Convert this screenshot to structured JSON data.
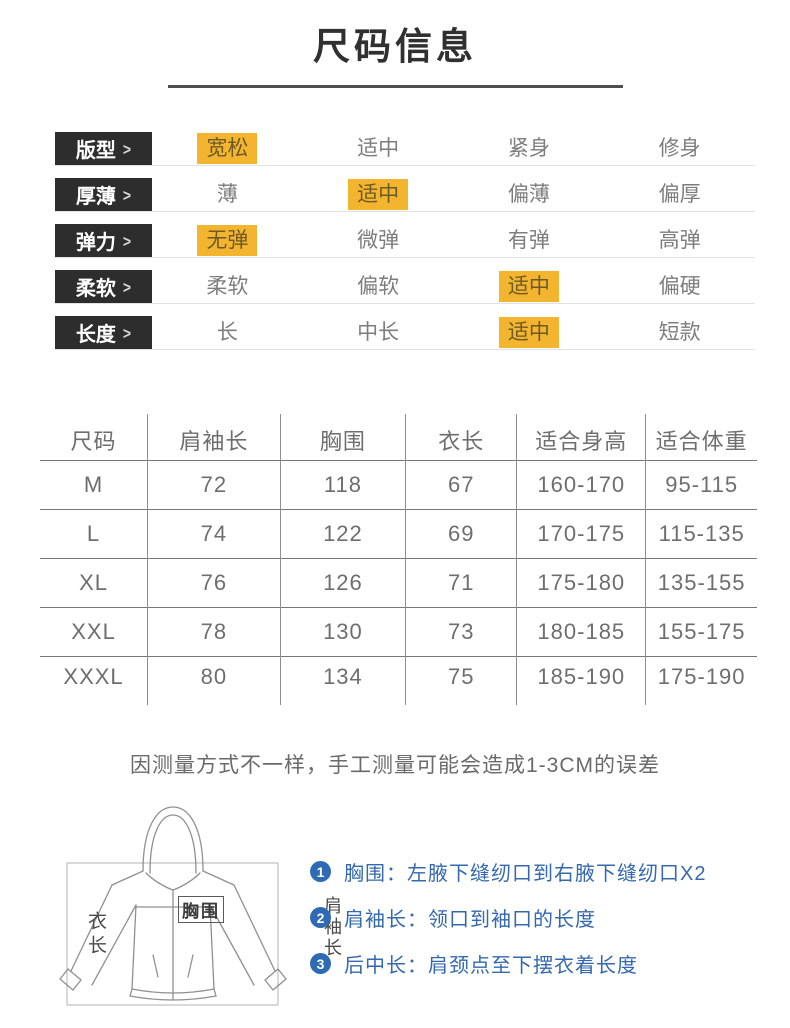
{
  "title": "尺码信息",
  "attributes": {
    "arrow": ">",
    "rows": [
      {
        "label": "版型",
        "options": [
          "宽松",
          "适中",
          "紧身",
          "修身"
        ],
        "selected": 0
      },
      {
        "label": "厚薄",
        "options": [
          "薄",
          "适中",
          "偏薄",
          "偏厚"
        ],
        "selected": 1
      },
      {
        "label": "弹力",
        "options": [
          "无弹",
          "微弹",
          "有弹",
          "高弹"
        ],
        "selected": 0
      },
      {
        "label": "柔软",
        "options": [
          "柔软",
          "偏软",
          "适中",
          "偏硬"
        ],
        "selected": 2
      },
      {
        "label": "长度",
        "options": [
          "长",
          "中长",
          "适中",
          "短款"
        ],
        "selected": 2
      }
    ]
  },
  "size_table": {
    "headers": [
      "尺码",
      "肩袖长",
      "胸围",
      "衣长",
      "适合身高",
      "适合体重"
    ],
    "rows": [
      [
        "M",
        "72",
        "118",
        "67",
        "160-170",
        "95-115"
      ],
      [
        "L",
        "74",
        "122",
        "69",
        "170-175",
        "115-135"
      ],
      [
        "XL",
        "76",
        "126",
        "71",
        "175-180",
        "135-155"
      ],
      [
        "XXL",
        "78",
        "130",
        "73",
        "180-185",
        "155-175"
      ],
      [
        "XXXL",
        "80",
        "134",
        "75",
        "185-190",
        "175-190"
      ]
    ]
  },
  "note": "因测量方式不一样，手工测量可能会造成1-3CM的误差",
  "diagram": {
    "labels": {
      "garment_length": "衣长",
      "shoulder_sleeve": "肩袖长",
      "chest": "胸围"
    }
  },
  "legend": {
    "items": [
      {
        "num": "1",
        "text": "胸围：左腋下缝纫口到右腋下缝纫口X2"
      },
      {
        "num": "2",
        "text": "肩袖长：领口到袖口的长度"
      },
      {
        "num": "3",
        "text": "后中长：肩颈点至下摆衣着长度"
      }
    ]
  },
  "colors": {
    "highlight_yellow": "#f3b42f",
    "label_box_black": "#2d2d2d",
    "legend_blue": "#2e6bb2",
    "table_line_gray": "#8f8f8f",
    "text_gray": "#6e6e6e"
  }
}
